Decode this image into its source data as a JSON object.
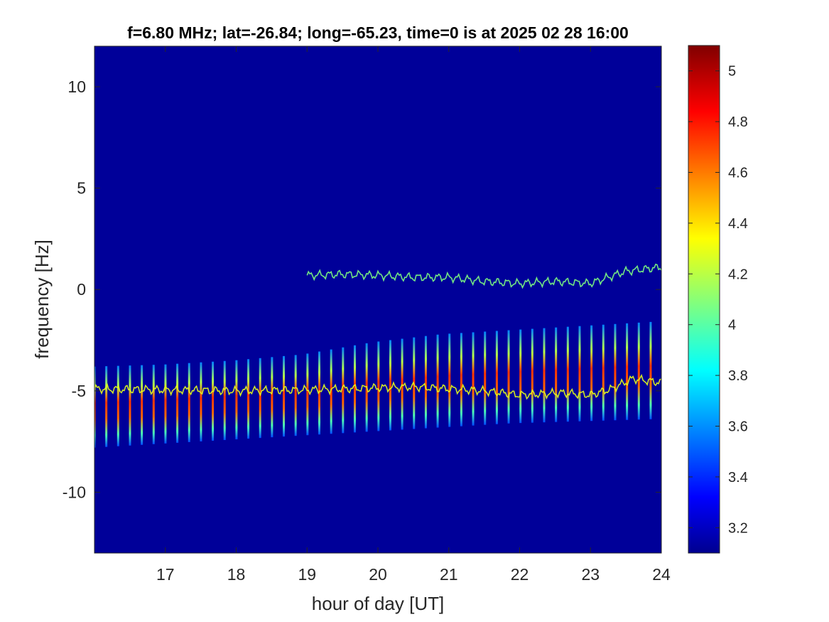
{
  "chart_data": {
    "type": "heatmap",
    "title": "f=6.80 MHz;  lat=-26.84; long=-65.23, time=0 is at 2025 02 28 16:00",
    "xlabel": "hour of day [UT]",
    "ylabel": "frequency [Hz]",
    "xlim": [
      16,
      24
    ],
    "ylim": [
      -13,
      12
    ],
    "xticks": [
      17,
      18,
      19,
      20,
      21,
      22,
      23,
      24
    ],
    "xtick_labels": [
      "17",
      "18",
      "19",
      "20",
      "21",
      "22",
      "23",
      "24"
    ],
    "yticks": [
      10,
      5,
      0,
      -5,
      -10
    ],
    "ytick_labels": [
      "10",
      "5",
      "0",
      "-5",
      "-10"
    ],
    "colormap": "jet",
    "clim": [
      3.1,
      5.1
    ],
    "colorbar_ticks": [
      5,
      4.8,
      4.6,
      4.4,
      4.2,
      4,
      3.8,
      3.6,
      3.4,
      3.2
    ],
    "colorbar_tick_labels": [
      "5",
      "4.8",
      "4.6",
      "4.4",
      "4.2",
      "4",
      "3.8",
      "3.6",
      "3.4",
      "3.2"
    ],
    "background_value": 3.15,
    "features": {
      "vertical_streaks": {
        "description_value": "periodic broadband streaks",
        "start_hour": 16.0,
        "interval_hours": 0.167,
        "count": 48,
        "lower_freq": [
          -7.8,
          -7.6,
          -7.4,
          -7.2,
          -7.0,
          -6.8,
          -6.6,
          -6.5,
          -6.4
        ],
        "upper_freq": [
          -3.8,
          -3.7,
          -3.5,
          -3.2,
          -2.6,
          -2.2,
          -2.0,
          -1.8,
          -1.6
        ],
        "peak_value": 4.75
      },
      "doppler_trace_main": {
        "hours": [
          16.0,
          17.0,
          18.0,
          19.0,
          19.5,
          20.0,
          20.5,
          21.0,
          21.5,
          22.0,
          22.3,
          22.6,
          23.0,
          23.3,
          23.6,
          24.0
        ],
        "freq": [
          -4.9,
          -4.95,
          -5.0,
          -4.95,
          -4.9,
          -4.85,
          -4.8,
          -4.9,
          -5.0,
          -5.2,
          -5.15,
          -5.1,
          -5.2,
          -4.9,
          -4.4,
          -4.6
        ],
        "value": 4.3
      },
      "doppler_trace_upper": {
        "hours": [
          19.0,
          19.5,
          20.0,
          20.5,
          21.0,
          21.5,
          22.0,
          22.5,
          23.0,
          23.5,
          24.0
        ],
        "freq": [
          0.7,
          0.75,
          0.7,
          0.6,
          0.6,
          0.4,
          0.3,
          0.4,
          0.3,
          0.9,
          1.1
        ],
        "value": 4.1
      }
    }
  }
}
